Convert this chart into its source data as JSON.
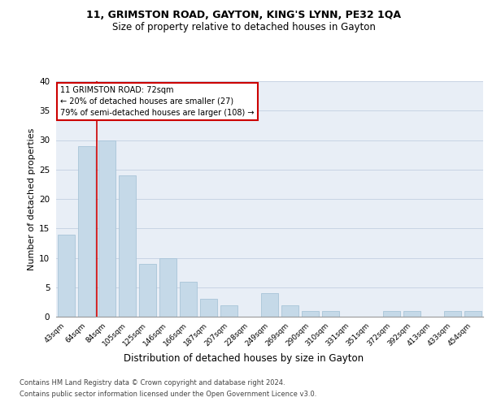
{
  "title_line1": "11, GRIMSTON ROAD, GAYTON, KING'S LYNN, PE32 1QA",
  "title_line2": "Size of property relative to detached houses in Gayton",
  "xlabel": "Distribution of detached houses by size in Gayton",
  "ylabel": "Number of detached properties",
  "categories": [
    "43sqm",
    "64sqm",
    "84sqm",
    "105sqm",
    "125sqm",
    "146sqm",
    "166sqm",
    "187sqm",
    "207sqm",
    "228sqm",
    "249sqm",
    "269sqm",
    "290sqm",
    "310sqm",
    "331sqm",
    "351sqm",
    "372sqm",
    "392sqm",
    "413sqm",
    "433sqm",
    "454sqm"
  ],
  "values": [
    14,
    29,
    30,
    24,
    9,
    10,
    6,
    3,
    2,
    0,
    4,
    2,
    1,
    1,
    0,
    0,
    1,
    1,
    0,
    1,
    1
  ],
  "bar_color": "#c5d9e8",
  "bar_edge_color": "#a8c4d8",
  "red_line_x": 1.5,
  "annotation_text": "11 GRIMSTON ROAD: 72sqm\n← 20% of detached houses are smaller (27)\n79% of semi-detached houses are larger (108) →",
  "annotation_box_color": "#ffffff",
  "annotation_box_edge": "#cc0000",
  "footer_line1": "Contains HM Land Registry data © Crown copyright and database right 2024.",
  "footer_line2": "Contains public sector information licensed under the Open Government Licence v3.0.",
  "ylim": [
    0,
    40
  ],
  "yticks": [
    0,
    5,
    10,
    15,
    20,
    25,
    30,
    35,
    40
  ],
  "grid_color": "#c8d4e4",
  "background_color": "#e8eef6"
}
